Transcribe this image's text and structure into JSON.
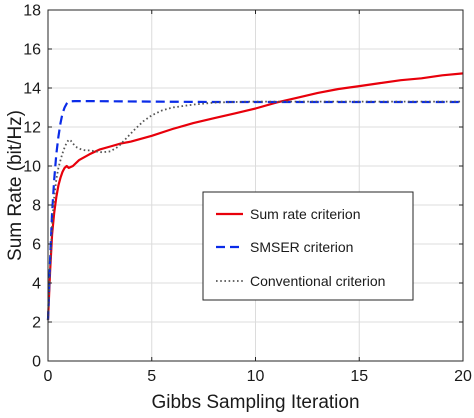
{
  "chart_data": {
    "type": "line",
    "title": "",
    "xlabel": "Gibbs Sampling Iteration",
    "ylabel": "Sum Rate (bit/Hz)",
    "xlim": [
      0,
      20
    ],
    "ylim": [
      0,
      18
    ],
    "xticks": [
      0,
      5,
      10,
      15,
      20
    ],
    "yticks": [
      0,
      2,
      4,
      6,
      8,
      10,
      12,
      14,
      16,
      18
    ],
    "grid": true,
    "legend_position": "center-right",
    "series": [
      {
        "name": "Sum rate criterion",
        "color": "#e8000b",
        "style": "solid",
        "x": [
          0,
          0.1,
          0.2,
          0.3,
          0.4,
          0.5,
          0.6,
          0.7,
          0.8,
          0.9,
          1.0,
          1.2,
          1.5,
          2.0,
          2.5,
          3.0,
          3.5,
          4.0,
          5.0,
          6.0,
          7.0,
          8.0,
          9.0,
          10.0,
          11.0,
          12.0,
          13.0,
          14.0,
          15.0,
          16.0,
          17.0,
          18.0,
          19.0,
          20.0
        ],
        "y": [
          2.1,
          4.6,
          6.5,
          7.6,
          8.4,
          9.0,
          9.4,
          9.7,
          9.9,
          10.0,
          9.9,
          10.0,
          10.3,
          10.6,
          10.85,
          11.0,
          11.15,
          11.25,
          11.55,
          11.9,
          12.2,
          12.45,
          12.7,
          12.95,
          13.25,
          13.5,
          13.75,
          13.95,
          14.1,
          14.25,
          14.4,
          14.5,
          14.65,
          14.75
        ]
      },
      {
        "name": "SMSER criterion",
        "color": "#0a2be8",
        "style": "dashed",
        "x": [
          0,
          0.1,
          0.2,
          0.3,
          0.4,
          0.5,
          0.6,
          0.7,
          0.8,
          0.9,
          1.0,
          1.1,
          1.3,
          1.6,
          2.0,
          3.0,
          5.0,
          8.0,
          10.0,
          12.0,
          15.0,
          18.0,
          20.0
        ],
        "y": [
          2.1,
          5.2,
          7.6,
          9.3,
          10.6,
          11.5,
          12.2,
          12.7,
          13.0,
          13.2,
          13.3,
          13.32,
          13.33,
          13.33,
          13.33,
          13.32,
          13.3,
          13.28,
          13.28,
          13.28,
          13.28,
          13.28,
          13.28
        ]
      },
      {
        "name": "Conventional criterion",
        "color": "#555555",
        "style": "dotted",
        "x": [
          0,
          0.1,
          0.2,
          0.3,
          0.4,
          0.5,
          0.6,
          0.7,
          0.8,
          0.9,
          1.0,
          1.1,
          1.2,
          1.4,
          1.6,
          1.8,
          2.0,
          2.3,
          2.6,
          3.0,
          3.4,
          3.8,
          4.2,
          4.6,
          5.0,
          5.5,
          6.0,
          7.0,
          8.0,
          9.0,
          10.0,
          12.0,
          14.0,
          16.0,
          18.0,
          20.0
        ],
        "y": [
          2.1,
          4.8,
          7.0,
          8.4,
          9.3,
          9.9,
          10.3,
          10.65,
          10.95,
          11.2,
          11.35,
          11.3,
          11.15,
          10.95,
          10.85,
          10.8,
          10.8,
          10.75,
          10.7,
          10.75,
          11.0,
          11.45,
          11.9,
          12.3,
          12.6,
          12.85,
          13.0,
          13.15,
          13.25,
          13.28,
          13.3,
          13.3,
          13.3,
          13.3,
          13.3,
          13.3
        ]
      }
    ]
  }
}
